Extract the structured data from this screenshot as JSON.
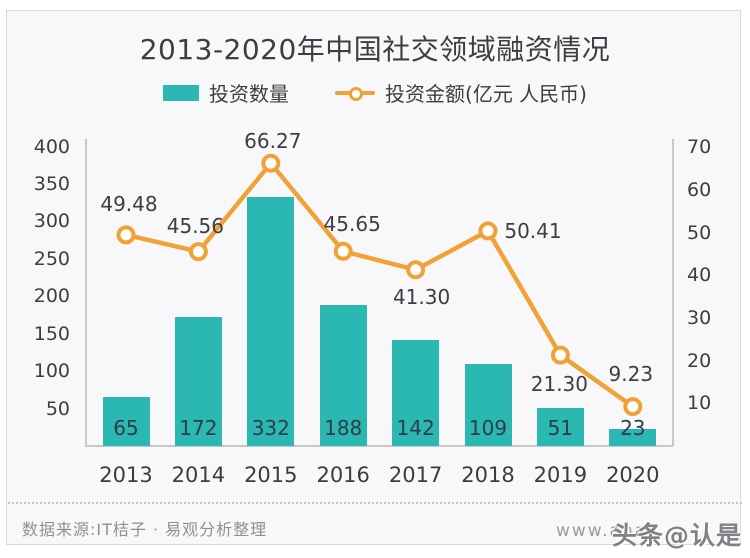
{
  "page": {
    "title": "2013-2020年中国社交领域融资情况"
  },
  "colors": {
    "bar": "#2bb7b2",
    "line": "#f0a236",
    "marker_fill": "#fdfdfd",
    "text_dark": "#3e3e42",
    "text_gray": "#8f9094"
  },
  "chart_data": {
    "type": "bar+line",
    "title": "2013-2020年中国社交领域融资情况",
    "categories": [
      "2013",
      "2014",
      "2015",
      "2016",
      "2017",
      "2018",
      "2019",
      "2020"
    ],
    "series": [
      {
        "name": "投资数量",
        "type": "bar",
        "axis": "left",
        "color": "#2bb7b2",
        "values": [
          65,
          172,
          332,
          188,
          142,
          109,
          51,
          23
        ]
      },
      {
        "name": "投资金额(亿元 人民币)",
        "type": "line",
        "axis": "right",
        "color": "#f0a236",
        "values": [
          49.48,
          45.56,
          66.27,
          45.65,
          41.3,
          50.41,
          21.3,
          9.23
        ],
        "value_labels": [
          "49.48",
          "45.56",
          "66.27",
          "45.65",
          "41.30",
          "50.41",
          "21.30",
          "9.23"
        ]
      }
    ],
    "left_axis": {
      "ticks": [
        50,
        100,
        150,
        200,
        250,
        300,
        350,
        400
      ],
      "min": 0,
      "max": 420
    },
    "right_axis": {
      "ticks": [
        10,
        20,
        30,
        40,
        50,
        60,
        70
      ],
      "min": 0,
      "max": 73
    },
    "grid": false,
    "legend_position": "top"
  },
  "footer": {
    "source": "数据来源:IT桔子 · 易观分析整理",
    "url": "www.ana",
    "watermark": "头条@认是"
  }
}
